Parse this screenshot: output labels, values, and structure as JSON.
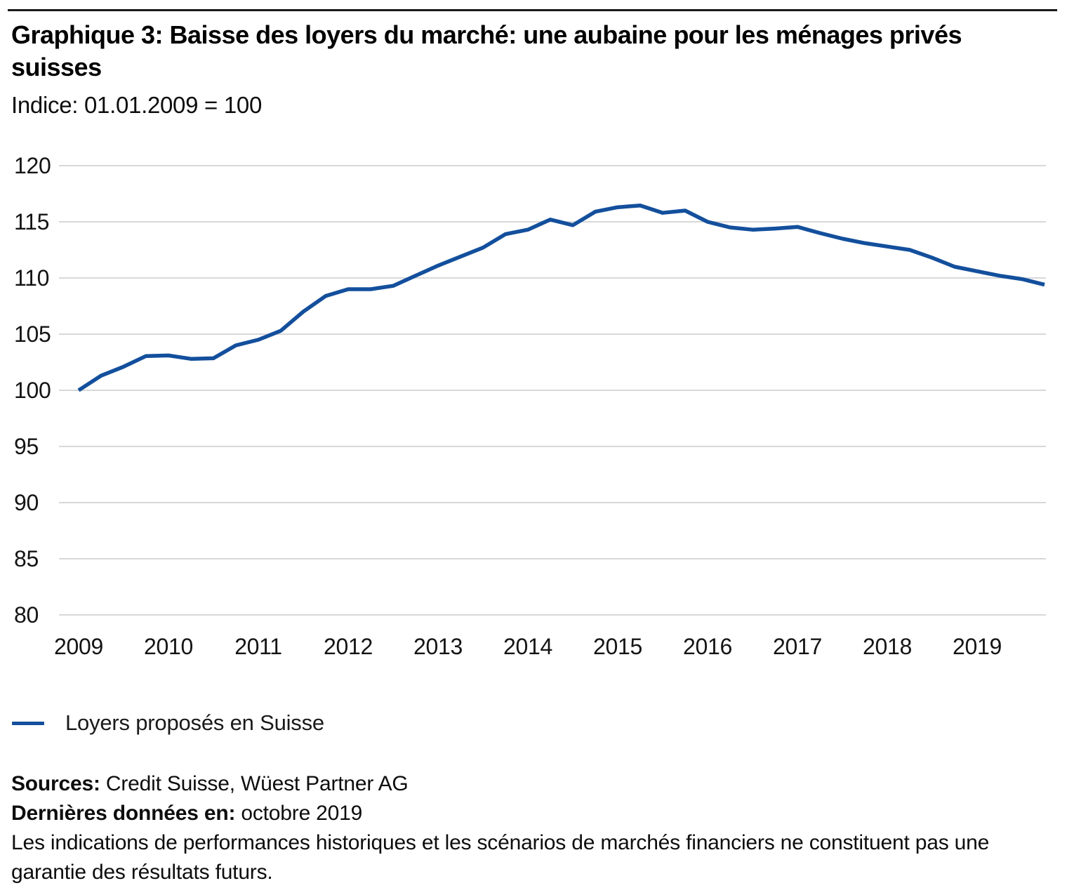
{
  "header": {
    "title": "Graphique 3: Baisse des loyers du marché: une aubaine pour les ménages privés suisses",
    "subtitle": "Indice: 01.01.2009 = 100"
  },
  "colors": {
    "line_blue": "#134f9c",
    "grid_gray": "#d8d8d8",
    "axis_text": "#141414",
    "top_rule": "#1a1a1a"
  },
  "chart_data": {
    "type": "line",
    "title": "Graphique 3: Baisse des loyers du marché: une aubaine pour les ménages privés suisses",
    "subtitle": "Indice: 01.01.2009 = 100",
    "xlabel": "",
    "ylabel": "",
    "ylim": [
      80,
      120
    ],
    "yticks": [
      80,
      85,
      90,
      95,
      100,
      105,
      110,
      115,
      120
    ],
    "xticks": [
      2009,
      2010,
      2011,
      2012,
      2013,
      2014,
      2015,
      2016,
      2017,
      2018,
      2019
    ],
    "grid": "horizontal-only",
    "legend_position": "bottom-left",
    "points_per_year": 4,
    "start_year": 2009,
    "last_data": "octobre 2019",
    "series": [
      {
        "name": "Loyers proposés en Suisse",
        "color": "#134f9c",
        "values": [
          100.0,
          101.3,
          102.1,
          103.05,
          103.1,
          102.8,
          102.85,
          104.0,
          104.5,
          105.3,
          107.0,
          108.4,
          109.0,
          109.0,
          109.3,
          110.2,
          111.1,
          111.9,
          112.7,
          113.9,
          114.3,
          115.2,
          114.7,
          115.9,
          116.3,
          116.45,
          115.8,
          116.0,
          115.0,
          114.5,
          114.3,
          114.4,
          114.55,
          114.0,
          113.5,
          113.1,
          112.8,
          112.5,
          111.8,
          111.0,
          110.6,
          110.2,
          109.9,
          109.4
        ]
      }
    ]
  },
  "legend": {
    "label": "Loyers proposés en Suisse"
  },
  "footer": {
    "sources_label": "Sources:",
    "sources_value": " Credit Suisse, Wüest Partner AG",
    "last_data_label": "Dernières données en:",
    "last_data_value": " octobre 2019",
    "disclaimer": "Les indications de performances historiques et les scénarios de marchés financiers ne constituent pas une garantie des résultats futurs."
  }
}
